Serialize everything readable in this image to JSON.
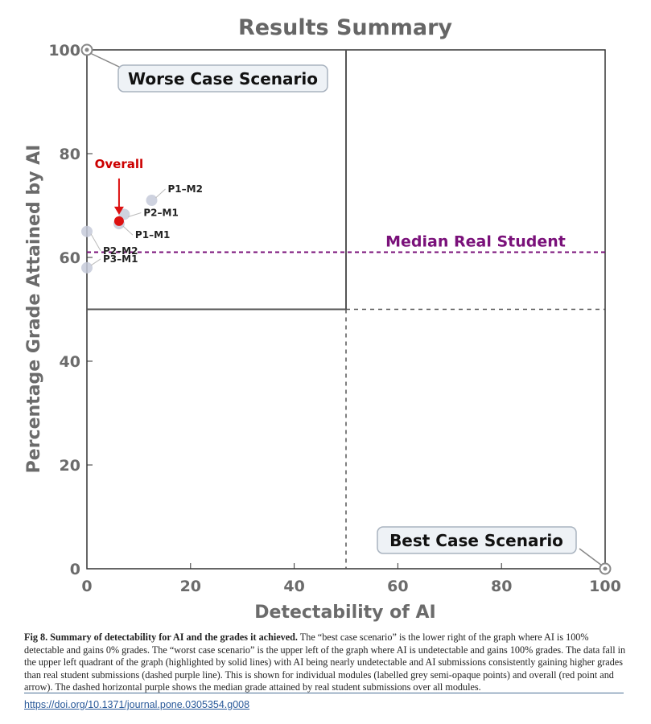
{
  "chart_data": {
    "type": "scatter",
    "title": "Results Summary",
    "xlabel": "Detectability of AI",
    "ylabel": "Percentage Grade Attained by AI",
    "xlim": [
      0,
      100
    ],
    "ylim": [
      0,
      100
    ],
    "x_ticks": [
      "0",
      "20",
      "40",
      "60",
      "80",
      "100"
    ],
    "y_ticks": [
      "0",
      "20",
      "40",
      "60",
      "80",
      "100"
    ],
    "points": [
      {
        "label": "P1–M2",
        "x": 12.5,
        "y": 71
      },
      {
        "label": "P2–M1",
        "x": 7.2,
        "y": 68.3
      },
      {
        "label": "P1–M1",
        "x": 6.2,
        "y": 66.5
      },
      {
        "label": "P2–M2",
        "x": 0,
        "y": 65
      },
      {
        "label": "P3–M1",
        "x": 0,
        "y": 58
      }
    ],
    "overall": {
      "label": "Overall",
      "x": 6.2,
      "y": 67,
      "color": "#dd1111"
    },
    "point_color": "#c5cad9",
    "median_line": {
      "label": "Median Real Student",
      "y": 61,
      "color": "#7a117a"
    },
    "quadrant_divider": {
      "x": 50,
      "y": 50
    },
    "worst_case": {
      "label": "Worse Case Scenario",
      "x": 0,
      "y": 100
    },
    "best_case": {
      "label": "Best Case  Scenario",
      "x": 100,
      "y": 0
    }
  },
  "caption": {
    "bold": "Fig 8. Summary of detectability for AI and the grades it achieved.",
    "text": " The “best case scenario” is the lower right of the graph where AI is 100% detectable and gains 0% grades. The “worst case scenario” is the upper left of the graph where AI is undetectable and gains 100% grades. The data fall in the upper left quadrant of the graph (highlighted by solid lines) with AI being nearly undetectable and AI submissions consistently gaining higher grades than real student submissions (dashed purple line). This is shown for individual modules (labelled grey semi-opaque points) and overall (red point and arrow). The dashed horizontal purple shows the median grade attained by real student submissions over all modules."
  },
  "doi": "https://doi.org/10.1371/journal.pone.0305354.g008"
}
